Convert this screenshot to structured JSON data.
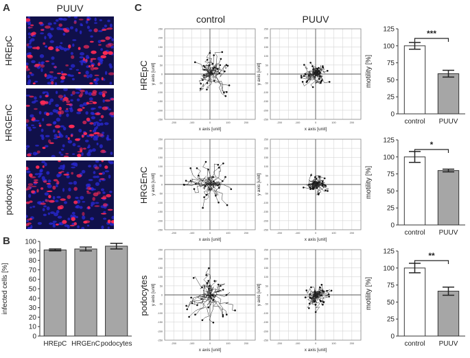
{
  "panels": {
    "a": "A",
    "b": "B",
    "c": "C"
  },
  "panel_a": {
    "title": "PUUV",
    "rows": [
      "HREpC",
      "HRGEnC",
      "podocytes"
    ]
  },
  "panel_c": {
    "columns": [
      "control",
      "PUUV"
    ],
    "rows": [
      "HREpC",
      "HRGEnC",
      "podocytes"
    ],
    "track_xlabel": "x axis [unit]",
    "track_ylabel": "y axis [unit]",
    "track_ticks": [
      "-250",
      "-200",
      "-150",
      "-100",
      "-50",
      "0",
      "50",
      "100",
      "150",
      "200",
      "250"
    ],
    "track_xticks": [
      "-200",
      "-100",
      "0",
      "100",
      "200"
    ]
  },
  "colors": {
    "bar_control": "#ffffff",
    "bar_puuv": "#a6a6a6",
    "nuclei": "#2a2ad8",
    "stain": "#ff2a55"
  },
  "chart_data": [
    {
      "id": "B",
      "type": "bar",
      "categories": [
        "HREpC",
        "HRGEnC",
        "podocytes"
      ],
      "values": [
        91,
        92,
        95
      ],
      "errors": [
        1,
        2,
        3
      ],
      "ylabel": "infected cells [%]",
      "ylim": [
        0,
        100
      ],
      "yticks": [
        "0",
        "10",
        "20",
        "30",
        "40",
        "50",
        "60",
        "70",
        "80",
        "90",
        "100"
      ]
    },
    {
      "id": "C-HREpC",
      "type": "bar",
      "categories": [
        "control",
        "PUUV"
      ],
      "values": [
        100,
        59
      ],
      "errors": [
        5,
        5
      ],
      "ylabel": "motility [%]",
      "ylim": [
        0,
        125
      ],
      "yticks": [
        "0",
        "25",
        "50",
        "75",
        "100",
        "125"
      ],
      "significance": "***"
    },
    {
      "id": "C-HRGEnC",
      "type": "bar",
      "categories": [
        "control",
        "PUUV"
      ],
      "values": [
        100,
        80
      ],
      "errors": [
        8,
        2
      ],
      "ylabel": "motility [%]",
      "ylim": [
        0,
        125
      ],
      "yticks": [
        "0",
        "25",
        "50",
        "75",
        "100",
        "125"
      ],
      "significance": "*"
    },
    {
      "id": "C-podocytes",
      "type": "bar",
      "categories": [
        "control",
        "PUUV"
      ],
      "values": [
        100,
        66
      ],
      "errors": [
        7,
        6
      ],
      "ylabel": "motility [%]",
      "ylim": [
        0,
        125
      ],
      "yticks": [
        "0",
        "25",
        "50",
        "75",
        "100",
        "125"
      ],
      "significance": "**"
    }
  ]
}
